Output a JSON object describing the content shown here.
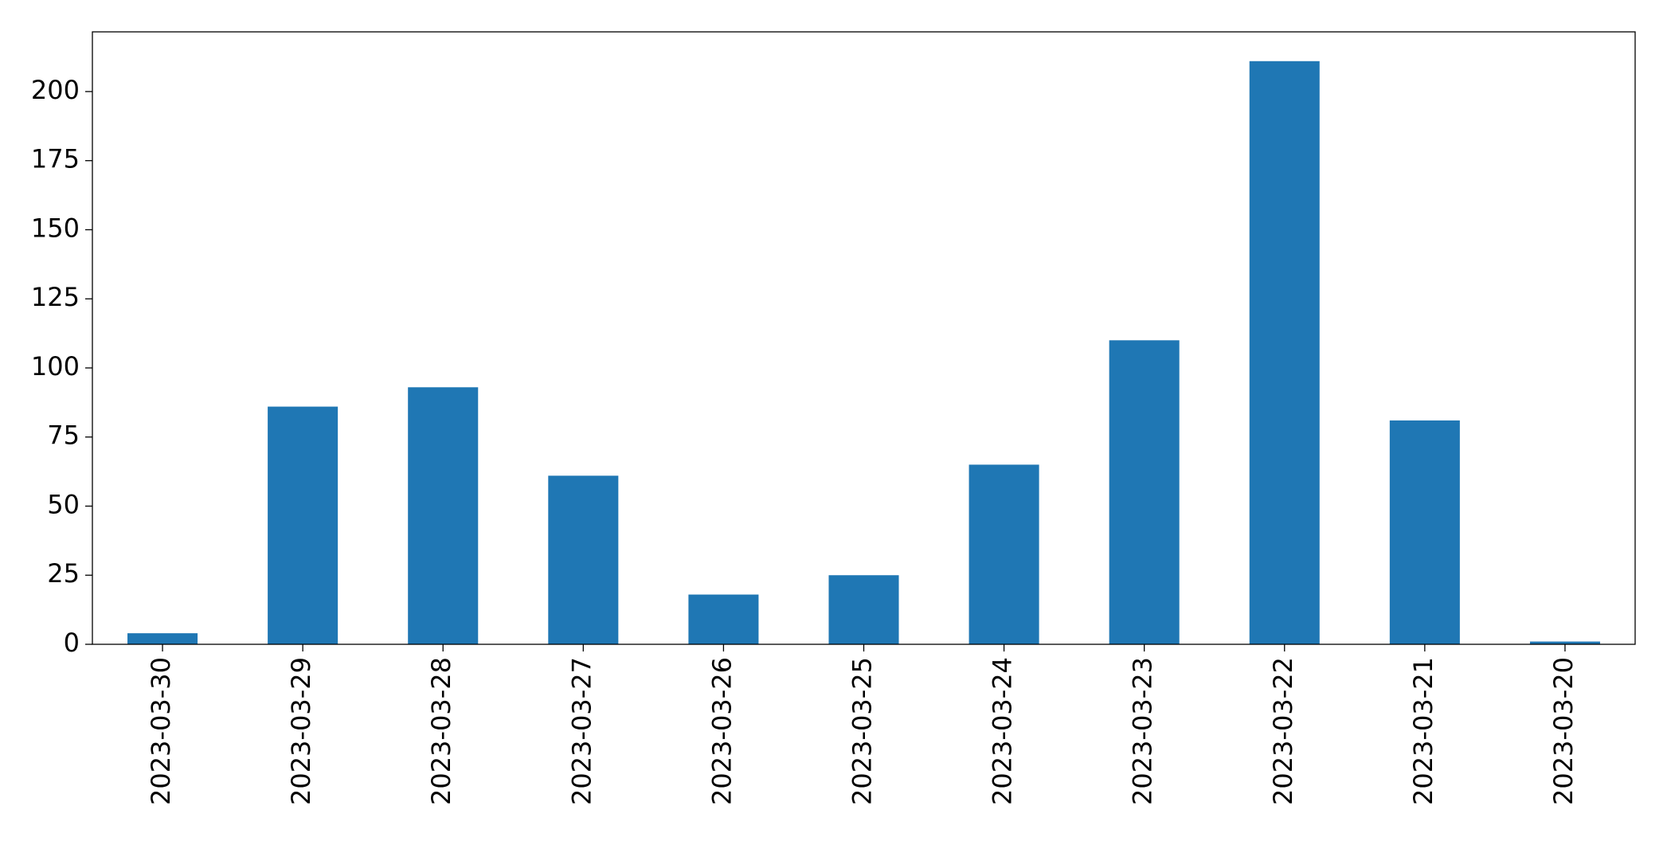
{
  "chart_data": {
    "type": "bar",
    "categories": [
      "2023-03-30",
      "2023-03-29",
      "2023-03-28",
      "2023-03-27",
      "2023-03-26",
      "2023-03-25",
      "2023-03-24",
      "2023-03-23",
      "2023-03-22",
      "2023-03-21",
      "2023-03-20"
    ],
    "values": [
      4,
      86,
      93,
      61,
      18,
      25,
      65,
      110,
      211,
      81,
      1
    ],
    "color": "#1f77b4",
    "ylim": [
      0,
      221.6
    ],
    "yticks": [
      0,
      25,
      50,
      75,
      100,
      125,
      150,
      175,
      200
    ],
    "grid": false
  }
}
